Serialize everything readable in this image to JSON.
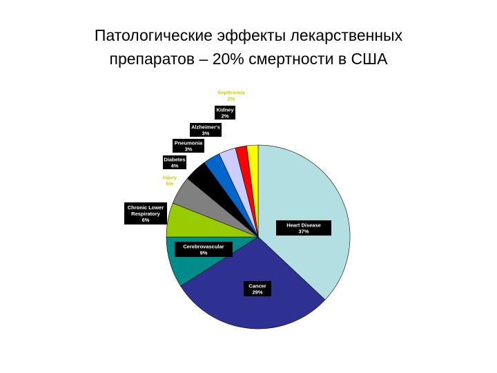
{
  "slide": {
    "title_line1": "Патологические эффекты лекарственных",
    "title_line2": "препаратов – 20% смертности в США"
  },
  "chart_data": {
    "type": "pie",
    "title": "Патологические эффекты лекарственных препаратов – 20% смертности в США",
    "start_angle_deg": 0,
    "direction": "clockwise",
    "legend": "none",
    "slices": [
      {
        "name": "Heart Disease",
        "label": "37%",
        "value": 37,
        "color": "#b3dfe3",
        "label_style": "boxed"
      },
      {
        "name": "Cancer",
        "label": "29%",
        "value": 29,
        "color": "#2e3192",
        "label_style": "boxed"
      },
      {
        "name": "Cerebrovascular",
        "label": "9%",
        "value": 9,
        "color": "#008b8b",
        "label_style": "boxed"
      },
      {
        "name": "Chronic Lower Respiratory",
        "label": "6%",
        "value": 6,
        "color": "#99cc00",
        "label_style": "boxed"
      },
      {
        "name": "Injury",
        "label": "5%",
        "value": 5,
        "color": "#808080",
        "label_style": "plain"
      },
      {
        "name": "Diabetes",
        "label": "4%",
        "value": 4,
        "color": "#000000",
        "label_style": "boxed"
      },
      {
        "name": "Pneumonia",
        "label": "3%",
        "value": 3,
        "color": "#0066cc",
        "label_style": "boxed"
      },
      {
        "name": "Alzheimer's",
        "label": "3%",
        "value": 3,
        "color": "#ccccff",
        "label_style": "boxed"
      },
      {
        "name": "Kidney",
        "label": "2%",
        "value": 2,
        "color": "#ff0000",
        "label_style": "boxed"
      },
      {
        "name": "Septicemia",
        "label": "2%",
        "value": 2,
        "color": "#ffff00",
        "label_style": "plain"
      }
    ]
  }
}
